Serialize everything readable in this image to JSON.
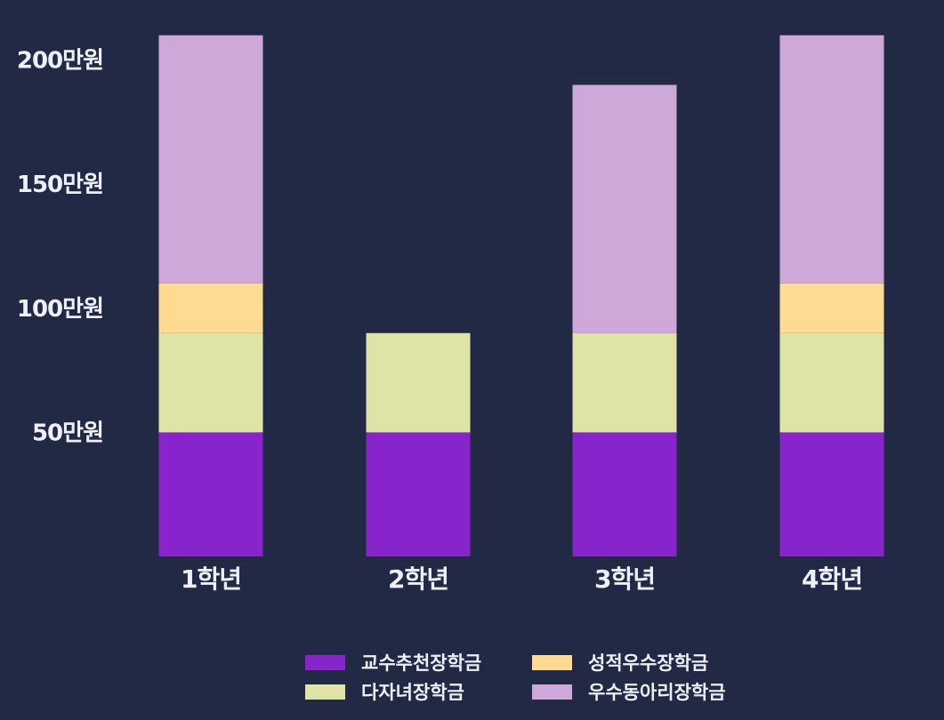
{
  "chart_data": {
    "type": "bar",
    "stacked": true,
    "categories": [
      "1학년",
      "2학년",
      "3학년",
      "4학년"
    ],
    "series": [
      {
        "name": "교수추천장학금",
        "color": "#8824cc",
        "values": [
          50,
          50,
          50,
          50
        ]
      },
      {
        "name": "다자녀장학금",
        "color": "#dde4a6",
        "values": [
          40,
          40,
          40,
          40
        ]
      },
      {
        "name": "성적우수장학금",
        "color": "#ffdb91",
        "values": [
          20,
          0,
          0,
          20
        ]
      },
      {
        "name": "우수동아리장학금",
        "color": "#cea8d8",
        "values": [
          100,
          0,
          100,
          100
        ]
      }
    ],
    "y_ticks": [
      {
        "value": 50,
        "label": "50만원"
      },
      {
        "value": 100,
        "label": "100만원"
      },
      {
        "value": 150,
        "label": "150만원"
      },
      {
        "value": 200,
        "label": "200만원"
      }
    ],
    "ylim": [
      0,
      210
    ],
    "grid": false,
    "legend_position": "bottom-center",
    "background_color": "#222945",
    "text_color": "#eef0f8"
  }
}
